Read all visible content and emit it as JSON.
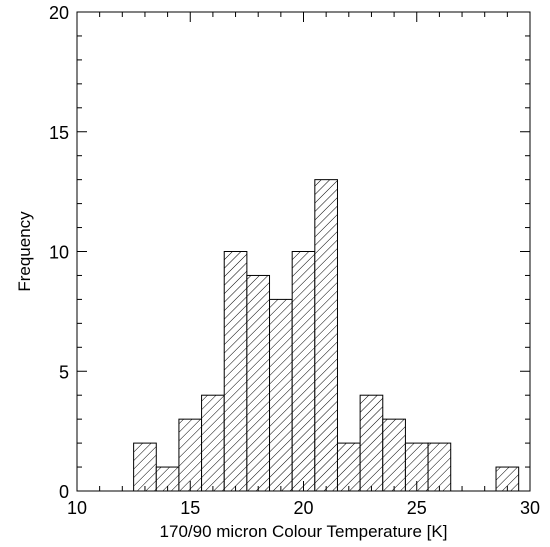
{
  "chart_data": {
    "type": "bar",
    "title": "",
    "xlabel": "170/90 micron Colour Temperature [K]",
    "ylabel": "Frequency",
    "xlim": [
      10,
      30
    ],
    "ylim": [
      0,
      20
    ],
    "xticks": [
      "10",
      "15",
      "20",
      "25",
      "30"
    ],
    "yticks": [
      "0",
      "5",
      "10",
      "15",
      "20"
    ],
    "bin_width": 1.0,
    "bins": [
      {
        "start": 12.5,
        "value": 2
      },
      {
        "start": 13.5,
        "value": 1
      },
      {
        "start": 14.5,
        "value": 3
      },
      {
        "start": 15.5,
        "value": 4
      },
      {
        "start": 16.5,
        "value": 10
      },
      {
        "start": 17.5,
        "value": 9
      },
      {
        "start": 18.5,
        "value": 8
      },
      {
        "start": 19.5,
        "value": 10
      },
      {
        "start": 20.5,
        "value": 13
      },
      {
        "start": 21.5,
        "value": 2
      },
      {
        "start": 22.5,
        "value": 4
      },
      {
        "start": 23.5,
        "value": 3
      },
      {
        "start": 24.5,
        "value": 2
      },
      {
        "start": 25.5,
        "value": 2
      },
      {
        "start": 28.5,
        "value": 1
      }
    ],
    "fill_pattern": "diagonal-hatch",
    "bar_stroke_color": "#000000",
    "grid": false
  }
}
